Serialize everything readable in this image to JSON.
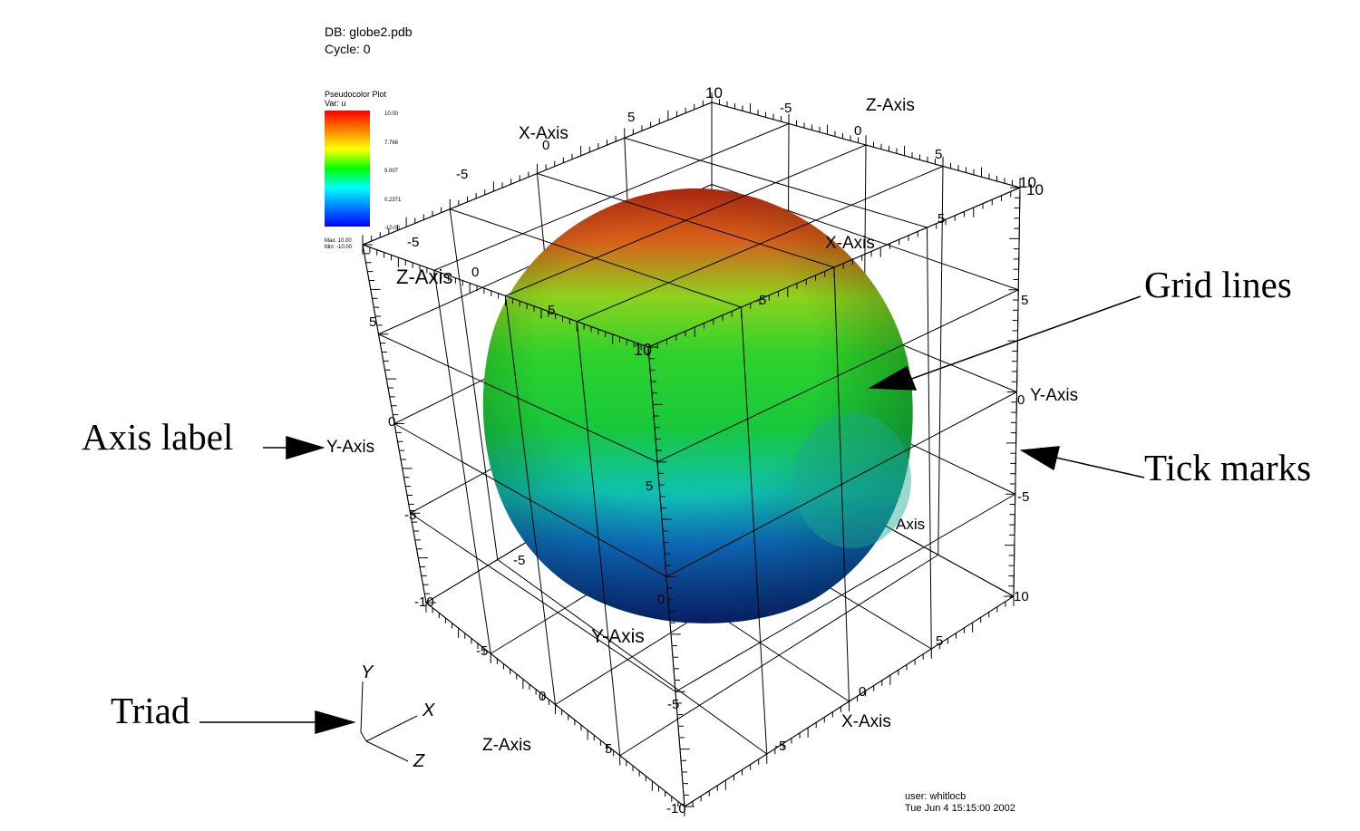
{
  "header": {
    "db": "DB: globe2.pdb",
    "cycle": "Cycle: 0"
  },
  "legend": {
    "title": "Pseudocolor Plot",
    "var": "Var:  u",
    "ticks": [
      "10.00",
      "7.766",
      "5.007",
      "0.2371",
      "-10.00"
    ],
    "max": "Max: 10.00",
    "min": "Min: -10.00",
    "gradient": [
      "#ff0000",
      "#ff8000",
      "#ffff00",
      "#00ff00",
      "#00ffff",
      "#0080ff",
      "#0000ff"
    ]
  },
  "callouts": {
    "grid_lines": "Grid lines",
    "tick_marks": "Tick marks",
    "axis_label": "Axis label",
    "triad": "Triad"
  },
  "triad": {
    "y": "Y",
    "x": "X",
    "z": "Z"
  },
  "axis_titles": {
    "x_top_back": "X-Axis",
    "z_top_right": "Z-Axis",
    "x_top_front": "X-Axis",
    "z_left": "Z-Axis",
    "y_left": "Y-Axis",
    "y_right": "Y-Axis",
    "x_right_partial": "Axis",
    "y_front_bottom": "Y-Axis",
    "z_bottom": "Z-Axis",
    "x_bottom": "X-Axis"
  },
  "tick_labels": {
    "x_back": [
      "-5",
      "0",
      "5",
      "10"
    ],
    "z_top": [
      "-5",
      "0",
      "5",
      "10"
    ],
    "right_top_corner": "10",
    "x_front_top": [
      "5",
      "-5"
    ],
    "front_top_corner": "10",
    "z_left": [
      "-5",
      "0"
    ],
    "y_left": [
      "5",
      "0",
      "-5",
      "-10"
    ],
    "y_right": [
      "5",
      "0",
      "-5",
      "-10"
    ],
    "y_front": [
      "5",
      "0",
      "-5",
      "-10"
    ],
    "z_bottom": [
      "-5",
      "0",
      "5"
    ],
    "x_bottom": [
      "0",
      "-5",
      "5"
    ],
    "y_mid_left": "-5"
  },
  "footer": {
    "user": "user: whitlocb",
    "date": "Tue Jun  4 15:15:00 2002"
  },
  "colors": {
    "sphere_top": "#c0300a",
    "sphere_mid": "#22d22a",
    "sphere_bottom": "#0c3a9a",
    "grid": "#000000"
  }
}
